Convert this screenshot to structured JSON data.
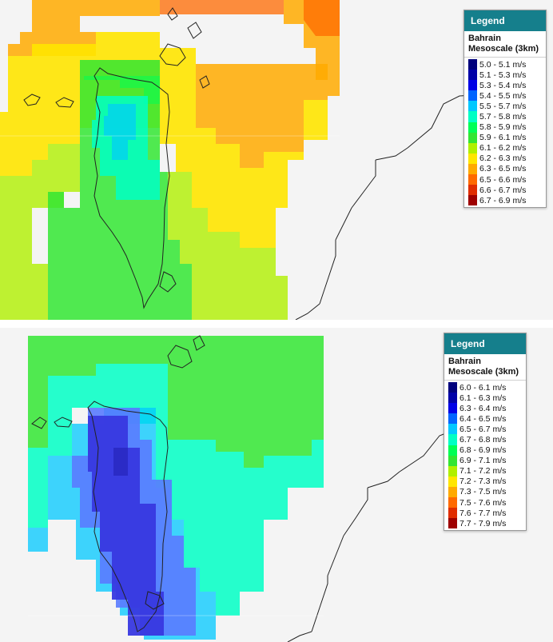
{
  "maps": [
    {
      "legend": {
        "title": "Legend",
        "subtitle": "Bahrain Mesoscale (3km)",
        "items": [
          {
            "label": "5.0 - 5.1 m/s",
            "color": "#00007d"
          },
          {
            "label": "5.1 - 5.3 m/s",
            "color": "#0000a8"
          },
          {
            "label": "5.3 - 5.4 m/s",
            "color": "#0000e6"
          },
          {
            "label": "5.4 - 5.5 m/s",
            "color": "#0064ff"
          },
          {
            "label": "5.5 - 5.7 m/s",
            "color": "#00c8ff"
          },
          {
            "label": "5.7 - 5.8 m/s",
            "color": "#00ffc4"
          },
          {
            "label": "5.8 - 5.9 m/s",
            "color": "#00ff55"
          },
          {
            "label": "5.9 - 6.1 m/s",
            "color": "#33e633"
          },
          {
            "label": "6.1 - 6.2 m/s",
            "color": "#b0f000"
          },
          {
            "label": "6.2 - 6.3 m/s",
            "color": "#ffe600"
          },
          {
            "label": "6.3 - 6.5 m/s",
            "color": "#ffaa00"
          },
          {
            "label": "6.5 - 6.6 m/s",
            "color": "#ff6a00"
          },
          {
            "label": "6.6 - 6.7 m/s",
            "color": "#e02d00"
          },
          {
            "label": "6.7 - 6.9 m/s",
            "color": "#9e0000"
          }
        ]
      }
    },
    {
      "legend": {
        "title": "Legend",
        "subtitle": "Bahrain Mesoscale (3km)",
        "items": [
          {
            "label": "6.0 - 6.1 m/s",
            "color": "#00007d"
          },
          {
            "label": "6.1 - 6.3 m/s",
            "color": "#0000a8"
          },
          {
            "label": "6.3 - 6.4 m/s",
            "color": "#0000e6"
          },
          {
            "label": "6.4 - 6.5 m/s",
            "color": "#0064ff"
          },
          {
            "label": "6.5 - 6.7 m/s",
            "color": "#00c8ff"
          },
          {
            "label": "6.7 - 6.8 m/s",
            "color": "#00ffc4"
          },
          {
            "label": "6.8 - 6.9 m/s",
            "color": "#00ff55"
          },
          {
            "label": "6.9 - 7.1 m/s",
            "color": "#33e633"
          },
          {
            "label": "7.1 - 7.2 m/s",
            "color": "#b0f000"
          },
          {
            "label": "7.2 - 7.3 m/s",
            "color": "#ffe600"
          },
          {
            "label": "7.3 - 7.5 m/s",
            "color": "#ffaa00"
          },
          {
            "label": "7.5 - 7.6 m/s",
            "color": "#ff6a00"
          },
          {
            "label": "7.6 - 7.7 m/s",
            "color": "#e02d00"
          },
          {
            "label": "7.7 - 7.9 m/s",
            "color": "#9e0000"
          }
        ]
      }
    }
  ]
}
